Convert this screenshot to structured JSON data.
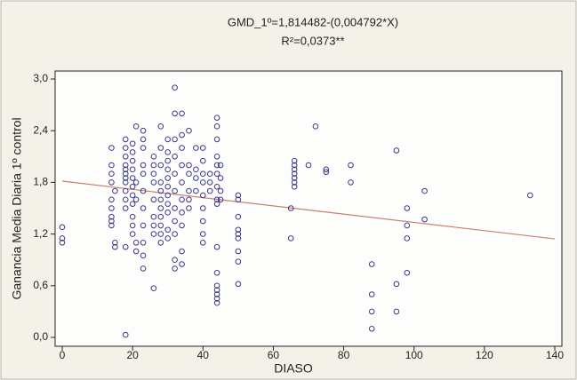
{
  "chart_data": {
    "type": "scatter",
    "title": "GMD_1º=1,814482-(0,004792*X)",
    "subtitle": "R²=0,0373**",
    "x_label": "DIASO",
    "y_label": "Ganancia Media Diaria 1º control",
    "xlim": [
      0,
      140
    ],
    "ylim": [
      0,
      3
    ],
    "xticks": [
      0,
      20,
      40,
      60,
      80,
      100,
      120,
      140
    ],
    "yticks": [
      {
        "value": 0,
        "label": "0,0"
      },
      {
        "value": 0.6,
        "label": "0,6"
      },
      {
        "value": 1.2,
        "label": "1,2"
      },
      {
        "value": 1.8,
        "label": "1,8"
      },
      {
        "value": 2.4,
        "label": "2,4"
      },
      {
        "value": 3,
        "label": "3,0"
      }
    ],
    "grid": false,
    "color": "#3a3a8c",
    "fit": {
      "intercept": 1.814482,
      "slope": -0.004792,
      "color": "#c8806c"
    },
    "x": [
      0,
      0,
      0,
      14,
      14,
      14,
      14,
      14,
      14,
      14,
      14,
      14,
      15,
      15,
      15,
      18,
      18,
      18,
      18,
      18,
      18,
      18,
      18,
      18,
      18,
      18,
      18,
      18,
      20,
      20,
      20,
      20,
      20,
      20,
      20,
      20,
      20,
      20,
      20,
      21,
      21,
      21,
      21,
      21,
      23,
      23,
      23,
      23,
      23,
      23,
      23,
      23,
      23,
      23,
      23,
      26,
      26,
      26,
      26,
      26,
      26,
      26,
      26,
      26,
      28,
      28,
      28,
      28,
      28,
      28,
      28,
      28,
      28,
      28,
      28,
      30,
      30,
      30,
      30,
      30,
      30,
      30,
      30,
      30,
      30,
      30,
      32,
      32,
      32,
      32,
      32,
      32,
      32,
      32,
      32,
      32,
      32,
      34,
      34,
      34,
      34,
      34,
      34,
      34,
      34,
      34,
      34,
      36,
      36,
      36,
      36,
      36,
      36,
      38,
      38,
      38,
      38,
      40,
      40,
      40,
      40,
      40,
      40,
      40,
      40,
      40,
      42,
      42,
      42,
      44,
      44,
      44,
      44,
      44,
      44,
      44,
      44,
      44,
      44,
      44,
      44,
      44,
      44,
      44,
      44,
      45,
      45,
      45,
      45,
      50,
      50,
      50,
      50,
      50,
      50,
      50,
      50,
      50,
      65,
      65,
      66,
      66,
      66,
      66,
      66,
      66,
      66,
      70,
      72,
      75,
      75,
      82,
      82,
      88,
      88,
      88,
      88,
      95,
      95,
      95,
      98,
      98,
      98,
      98,
      103,
      103,
      133
    ],
    "y": [
      1.28,
      1.15,
      1.1,
      1.4,
      1.5,
      1.6,
      1.8,
      1.9,
      2.0,
      2.2,
      1.3,
      1.35,
      1.05,
      1.1,
      1.7,
      0.03,
      1.05,
      2.3,
      2.2,
      2.1,
      2.0,
      1.95,
      1.9,
      1.85,
      1.8,
      1.7,
      1.6,
      1.5,
      1.2,
      1.3,
      1.4,
      1.55,
      1.65,
      1.75,
      1.85,
      1.95,
      2.05,
      2.15,
      2.25,
      2.45,
      1.0,
      1.1,
      1.6,
      1.8,
      2.4,
      2.3,
      2.2,
      2.0,
      1.9,
      1.7,
      1.5,
      1.3,
      1.1,
      0.8,
      0.95,
      0.57,
      1.2,
      1.3,
      1.4,
      1.6,
      1.8,
      1.9,
      2.0,
      2.1,
      1.1,
      1.2,
      1.4,
      1.5,
      1.7,
      1.8,
      2.0,
      2.2,
      2.45,
      1.3,
      1.6,
      1.15,
      1.25,
      1.45,
      1.55,
      1.75,
      1.85,
      2.05,
      2.15,
      2.3,
      1.95,
      1.65,
      2.9,
      2.6,
      2.3,
      2.1,
      1.9,
      1.7,
      1.5,
      1.35,
      1.2,
      0.8,
      0.9,
      2.6,
      2.35,
      2.2,
      2.0,
      1.8,
      1.6,
      1.45,
      1.3,
      1.0,
      0.85,
      2.0,
      1.9,
      1.7,
      2.4,
      1.5,
      1.6,
      1.85,
      2.2,
      1.7,
      1.95,
      2.2,
      2.05,
      1.9,
      1.8,
      1.65,
      1.5,
      1.2,
      1.1,
      1.35,
      1.9,
      1.8,
      1.7,
      2.55,
      2.45,
      2.3,
      2.1,
      2.0,
      1.9,
      1.75,
      1.6,
      1.55,
      1.05,
      0.75,
      0.6,
      0.5,
      0.45,
      0.4,
      0.55,
      2.0,
      1.85,
      1.7,
      1.6,
      1.65,
      1.6,
      1.4,
      1.25,
      1.15,
      1.0,
      0.88,
      0.62,
      1.2,
      1.5,
      1.15,
      2.05,
      1.95,
      1.9,
      1.85,
      1.8,
      1.75,
      2.0,
      2.0,
      2.45,
      1.95,
      1.92,
      2.0,
      1.8,
      0.85,
      0.5,
      0.3,
      0.1,
      2.17,
      0.62,
      0.3,
      1.5,
      1.3,
      1.15,
      0.75,
      1.7,
      1.37,
      1.65
    ]
  }
}
